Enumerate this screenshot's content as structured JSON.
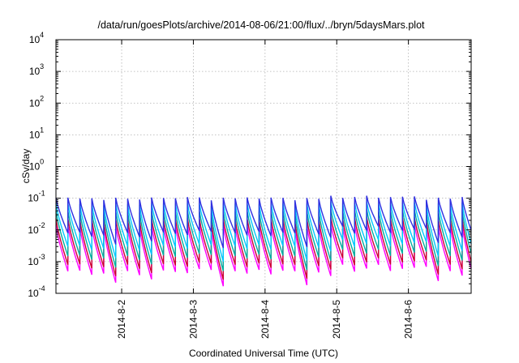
{
  "chart_data": {
    "type": "line",
    "title": "/data/run/goesPlots/archive/2014-08-06/21:00/flux/../bryn/5daysMars.plot",
    "xlabel": "Coordinated Universal Time (UTC)",
    "ylabel": "cSv/day",
    "yscale": "log",
    "ylim": [
      0.0001,
      10000
    ],
    "xlim": [
      "2014-08-01 02:00",
      "2014-08-06 21:00"
    ],
    "grid": true,
    "y_ticks": [
      {
        "base": "10",
        "exp": "-4"
      },
      {
        "base": "10",
        "exp": "-3"
      },
      {
        "base": "10",
        "exp": "-2"
      },
      {
        "base": "10",
        "exp": "-1"
      },
      {
        "base": "10",
        "exp": "0"
      },
      {
        "base": "10",
        "exp": "1"
      },
      {
        "base": "10",
        "exp": "2"
      },
      {
        "base": "10",
        "exp": "3"
      },
      {
        "base": "10",
        "exp": "4"
      }
    ],
    "x_ticks": [
      {
        "label": "2014-8-2",
        "date": "2014-08-02 00:00"
      },
      {
        "label": "2014-8-3",
        "date": "2014-08-03 00:00"
      },
      {
        "label": "2014-8-4",
        "date": "2014-08-04 00:00"
      },
      {
        "label": "2014-8-5",
        "date": "2014-08-05 00:00"
      },
      {
        "label": "2014-8-6",
        "date": "2014-08-06 00:00"
      }
    ],
    "cycle_hours": 4,
    "series": [
      {
        "color": "#ff00ff",
        "peak": 0.012,
        "trough": 0.0005
      },
      {
        "color": "#cc0033",
        "peak": 0.02,
        "trough": 0.0008
      },
      {
        "color": "#00b0a0",
        "peak": 0.035,
        "trough": 0.0015
      },
      {
        "color": "#00c8ff",
        "peak": 0.06,
        "trough": 0.003
      },
      {
        "color": "#3030e0",
        "peak": 0.09,
        "trough": 0.008
      }
    ]
  }
}
